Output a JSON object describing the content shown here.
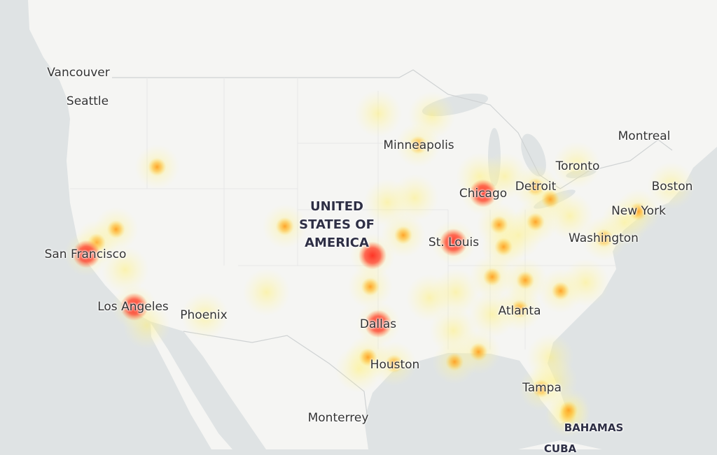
{
  "map": {
    "colors": {
      "water": "#dfe3e4",
      "land": "#f5f5f3",
      "border": "#cfd2d3",
      "high": "#ff2a1f",
      "medium": "#ffa21f",
      "low": "#fff08a"
    },
    "labels": {
      "vancouver": "Vancouver",
      "seattle": "Seattle",
      "montreal": "Montreal",
      "toronto": "Toronto",
      "minneapolis": "Minneapolis",
      "chicago": "Chicago",
      "detroit": "Detroit",
      "boston": "Boston",
      "new_york": "New York",
      "washington": "Washington",
      "st_louis": "St. Louis",
      "san_francisco": "San Francisco",
      "los_angeles": "Los Angeles",
      "phoenix": "Phoenix",
      "dallas": "Dallas",
      "houston": "Houston",
      "atlanta": "Atlanta",
      "tampa": "Tampa",
      "monterrey": "Monterrey",
      "usa_line1": "UNITED",
      "usa_line2": "STATES OF",
      "usa_line3": "AMERICA",
      "bahamas": "BAHAMAS",
      "cuba": "CUBA"
    },
    "hotspots": [
      {
        "lon": -122.4,
        "lat": 37.8,
        "level": "high"
      },
      {
        "lon": -118.2,
        "lat": 34.05,
        "level": "high"
      },
      {
        "lon": -97.3,
        "lat": 37.7,
        "level": "high"
      },
      {
        "lon": -96.8,
        "lat": 32.8,
        "level": "high"
      },
      {
        "lon": -90.2,
        "lat": 38.6,
        "level": "high"
      },
      {
        "lon": -87.6,
        "lat": 41.9,
        "level": "high"
      },
      {
        "lon": -93.3,
        "lat": 44.98,
        "level": "medium"
      },
      {
        "lon": -94.6,
        "lat": 39.1,
        "level": "medium"
      },
      {
        "lon": -97.5,
        "lat": 35.5,
        "level": "medium"
      },
      {
        "lon": -95.4,
        "lat": 29.8,
        "level": "medium"
      },
      {
        "lon": -97.7,
        "lat": 30.3,
        "level": "medium"
      },
      {
        "lon": -83.0,
        "lat": 42.3,
        "level": "medium"
      },
      {
        "lon": -81.7,
        "lat": 41.5,
        "level": "medium"
      },
      {
        "lon": -86.2,
        "lat": 39.8,
        "level": "medium"
      },
      {
        "lon": -83.0,
        "lat": 40.0,
        "level": "medium"
      },
      {
        "lon": -85.8,
        "lat": 38.3,
        "level": "medium"
      },
      {
        "lon": -86.8,
        "lat": 36.2,
        "level": "medium"
      },
      {
        "lon": -84.4,
        "lat": 33.9,
        "level": "medium"
      },
      {
        "lon": -80.8,
        "lat": 35.2,
        "level": "medium"
      },
      {
        "lon": -82.5,
        "lat": 27.9,
        "level": "medium"
      },
      {
        "lon": -80.2,
        "lat": 25.8,
        "level": "medium"
      },
      {
        "lon": -80.1,
        "lat": 26.2,
        "level": "medium"
      },
      {
        "lon": -74.0,
        "lat": 40.7,
        "level": "medium"
      },
      {
        "lon": -90.1,
        "lat": 29.95,
        "level": "medium"
      },
      {
        "lon": -88.0,
        "lat": 30.7,
        "level": "medium"
      },
      {
        "lon": -119.8,
        "lat": 39.5,
        "level": "medium"
      },
      {
        "lon": -121.5,
        "lat": 38.6,
        "level": "medium"
      },
      {
        "lon": -116.2,
        "lat": 43.6,
        "level": "medium"
      },
      {
        "lon": -104.99,
        "lat": 39.7,
        "level": "medium"
      },
      {
        "lon": -77.0,
        "lat": 38.9,
        "level": "medium"
      },
      {
        "lon": -83.9,
        "lat": 35.96,
        "level": "medium"
      },
      {
        "lon": -112.0,
        "lat": 33.4,
        "level": "low"
      },
      {
        "lon": -117.1,
        "lat": 32.7,
        "level": "low"
      },
      {
        "lon": -119.0,
        "lat": 36.7,
        "level": "low"
      },
      {
        "lon": -106.6,
        "lat": 35.1,
        "level": "low"
      },
      {
        "lon": -90.0,
        "lat": 35.1,
        "level": "low"
      },
      {
        "lon": -92.3,
        "lat": 34.7,
        "level": "low"
      },
      {
        "lon": -87.9,
        "lat": 43.0,
        "level": "low"
      },
      {
        "lon": -85.7,
        "lat": 43.0,
        "level": "low"
      },
      {
        "lon": -80.0,
        "lat": 40.4,
        "level": "low"
      },
      {
        "lon": -86.8,
        "lat": 33.5,
        "level": "low"
      },
      {
        "lon": -90.2,
        "lat": 32.3,
        "level": "low"
      },
      {
        "lon": -93.6,
        "lat": 41.6,
        "level": "low"
      },
      {
        "lon": -96.0,
        "lat": 41.3,
        "level": "low"
      },
      {
        "lon": -96.8,
        "lat": 46.9,
        "level": "low"
      },
      {
        "lon": -92.1,
        "lat": 46.8,
        "level": "low"
      },
      {
        "lon": -78.6,
        "lat": 35.8,
        "level": "low"
      },
      {
        "lon": -71.1,
        "lat": 42.4,
        "level": "low"
      },
      {
        "lon": -75.2,
        "lat": 39.95,
        "level": "low"
      },
      {
        "lon": -81.4,
        "lat": 28.5,
        "level": "low"
      },
      {
        "lon": -81.7,
        "lat": 30.3,
        "level": "low"
      },
      {
        "lon": -98.5,
        "lat": 29.4,
        "level": "low"
      },
      {
        "lon": -84.5,
        "lat": 39.1,
        "level": "low"
      },
      {
        "lon": -79.4,
        "lat": 43.7,
        "level": "low"
      }
    ]
  }
}
